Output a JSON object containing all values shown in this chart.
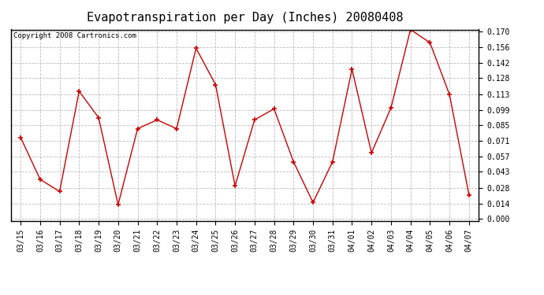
{
  "title": "Evapotranspiration per Day (Inches) 20080408",
  "copyright": "Copyright 2008 Cartronics.com",
  "dates": [
    "03/15",
    "03/16",
    "03/17",
    "03/18",
    "03/19",
    "03/20",
    "03/21",
    "03/22",
    "03/23",
    "03/24",
    "03/25",
    "03/26",
    "03/27",
    "03/28",
    "03/29",
    "03/30",
    "03/31",
    "04/01",
    "04/02",
    "04/03",
    "04/04",
    "04/05",
    "04/06",
    "04/07"
  ],
  "values": [
    0.074,
    0.036,
    0.025,
    0.116,
    0.092,
    0.013,
    0.082,
    0.09,
    0.082,
    0.155,
    0.122,
    0.03,
    0.09,
    0.1,
    0.052,
    0.015,
    0.052,
    0.136,
    0.06,
    0.101,
    0.172,
    0.16,
    0.113,
    0.022
  ],
  "line_color": "#cc0000",
  "marker_color": "#cc0000",
  "bg_color": "#ffffff",
  "grid_color": "#bbbbbb",
  "ylim": [
    0.0,
    0.17
  ],
  "yticks": [
    0.0,
    0.014,
    0.028,
    0.043,
    0.057,
    0.071,
    0.085,
    0.099,
    0.113,
    0.128,
    0.142,
    0.156,
    0.17
  ],
  "title_fontsize": 11,
  "tick_fontsize": 7,
  "copyright_fontsize": 6.5
}
